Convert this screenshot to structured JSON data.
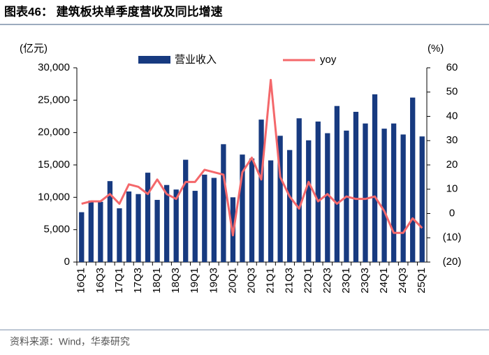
{
  "chart_data": {
    "type": "bar_line",
    "title": "图表46：  建筑板块单季度营收及同比增速",
    "source": "资料来源：Wind，华泰研究",
    "y_label": "(亿元)",
    "y2_label": "(%)",
    "categories": [
      "16Q1",
      null,
      "16Q3",
      null,
      "17Q1",
      null,
      "17Q3",
      null,
      "18Q1",
      null,
      "18Q3",
      null,
      "19Q1",
      null,
      "19Q3",
      null,
      "20Q1",
      null,
      "20Q3",
      null,
      "21Q1",
      null,
      "21Q3",
      null,
      "22Q1",
      null,
      "22Q3",
      null,
      "23Q1",
      null,
      "23Q3",
      null,
      "24Q1",
      null,
      "24Q3",
      null,
      "25Q1"
    ],
    "series": [
      {
        "name": "营业收入",
        "type": "bar",
        "color": "#173a80",
        "values": [
          7700,
          9500,
          9300,
          12500,
          8300,
          10900,
          10500,
          13800,
          9600,
          11900,
          11200,
          15800,
          11000,
          13500,
          13000,
          18200,
          10000,
          16600,
          16000,
          22000,
          15700,
          19500,
          17300,
          22200,
          18800,
          21700,
          19900,
          24100,
          20300,
          23200,
          21400,
          25900,
          20600,
          21400,
          19700,
          25400,
          19400
        ]
      },
      {
        "name": "yoy",
        "type": "line",
        "axis": "y2",
        "color": "#f4686b",
        "values": [
          4,
          5,
          5,
          8,
          4,
          12,
          11,
          8,
          14,
          8,
          6,
          13,
          13,
          18,
          17,
          16,
          -9,
          17,
          23,
          14,
          55,
          15,
          7,
          2,
          13,
          5,
          8,
          4,
          7,
          6,
          6,
          7,
          1,
          -8,
          -8,
          -2,
          -6
        ]
      }
    ],
    "ylim": [
      0,
      30000
    ],
    "yticks": [
      0,
      {
        "value": 5000,
        "label": "5,000"
      },
      {
        "value": 10000,
        "label": "10,000"
      },
      {
        "value": 15000,
        "label": "15,000"
      },
      {
        "value": 20000,
        "label": "20,000"
      },
      {
        "value": 25000,
        "label": "25,000"
      },
      {
        "value": 30000,
        "label": "30,000"
      }
    ],
    "y2lim": [
      -20,
      60
    ],
    "y2ticks": [
      {
        "value": -20,
        "label": "(20)"
      },
      {
        "value": -10,
        "label": "(10)"
      },
      0,
      10,
      20,
      30,
      40,
      50,
      60
    ],
    "grid": false
  }
}
